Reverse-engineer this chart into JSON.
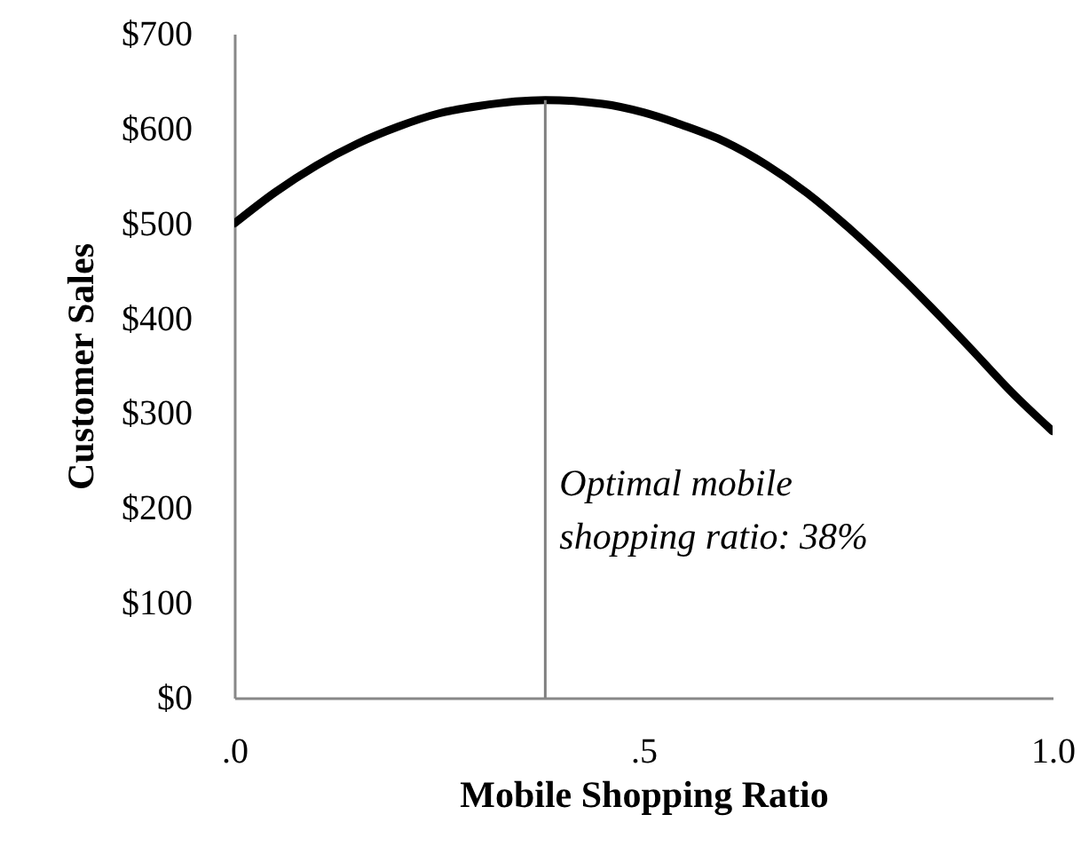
{
  "chart_data": {
    "type": "line",
    "xlabel": "Mobile Shopping Ratio",
    "ylabel": "Customer Sales",
    "x": [
      0,
      0.05,
      0.1,
      0.15,
      0.2,
      0.25,
      0.3,
      0.38,
      0.45,
      0.5,
      0.55,
      0.6,
      0.65,
      0.7,
      0.75,
      0.8,
      0.85,
      0.9,
      0.95,
      1.0
    ],
    "series": [
      {
        "color": "#000000",
        "values": [
          500,
          533,
          561,
          584,
          602,
          616,
          624,
          630,
          626,
          617,
          603,
          586,
          562,
          532,
          496,
          456,
          413,
          368,
          322,
          281
        ]
      }
    ],
    "xlim": [
      0,
      1
    ],
    "xticks": [
      {
        "value": 0,
        "label": ".0"
      },
      {
        "value": 0.5,
        "label": ".5"
      },
      {
        "value": 1,
        "label": "1.0"
      }
    ],
    "ylim": [
      0,
      700
    ],
    "yticks": [
      {
        "value": 0,
        "label": "$0"
      },
      {
        "value": 100,
        "label": "$100"
      },
      {
        "value": 200,
        "label": "$200"
      },
      {
        "value": 300,
        "label": "$300"
      },
      {
        "value": 400,
        "label": "$400"
      },
      {
        "value": 500,
        "label": "$500"
      },
      {
        "value": 600,
        "label": "$600"
      },
      {
        "value": 700,
        "label": "$700"
      }
    ],
    "marker": "none",
    "line_style": "solid",
    "ref_lines": [
      {
        "axis": "x",
        "value": 0.38,
        "color": "#808080"
      }
    ],
    "annotations": [
      {
        "text": "Optimal mobile\nshopping ratio: 38%",
        "x": 0.38,
        "y": 225
      }
    ]
  }
}
